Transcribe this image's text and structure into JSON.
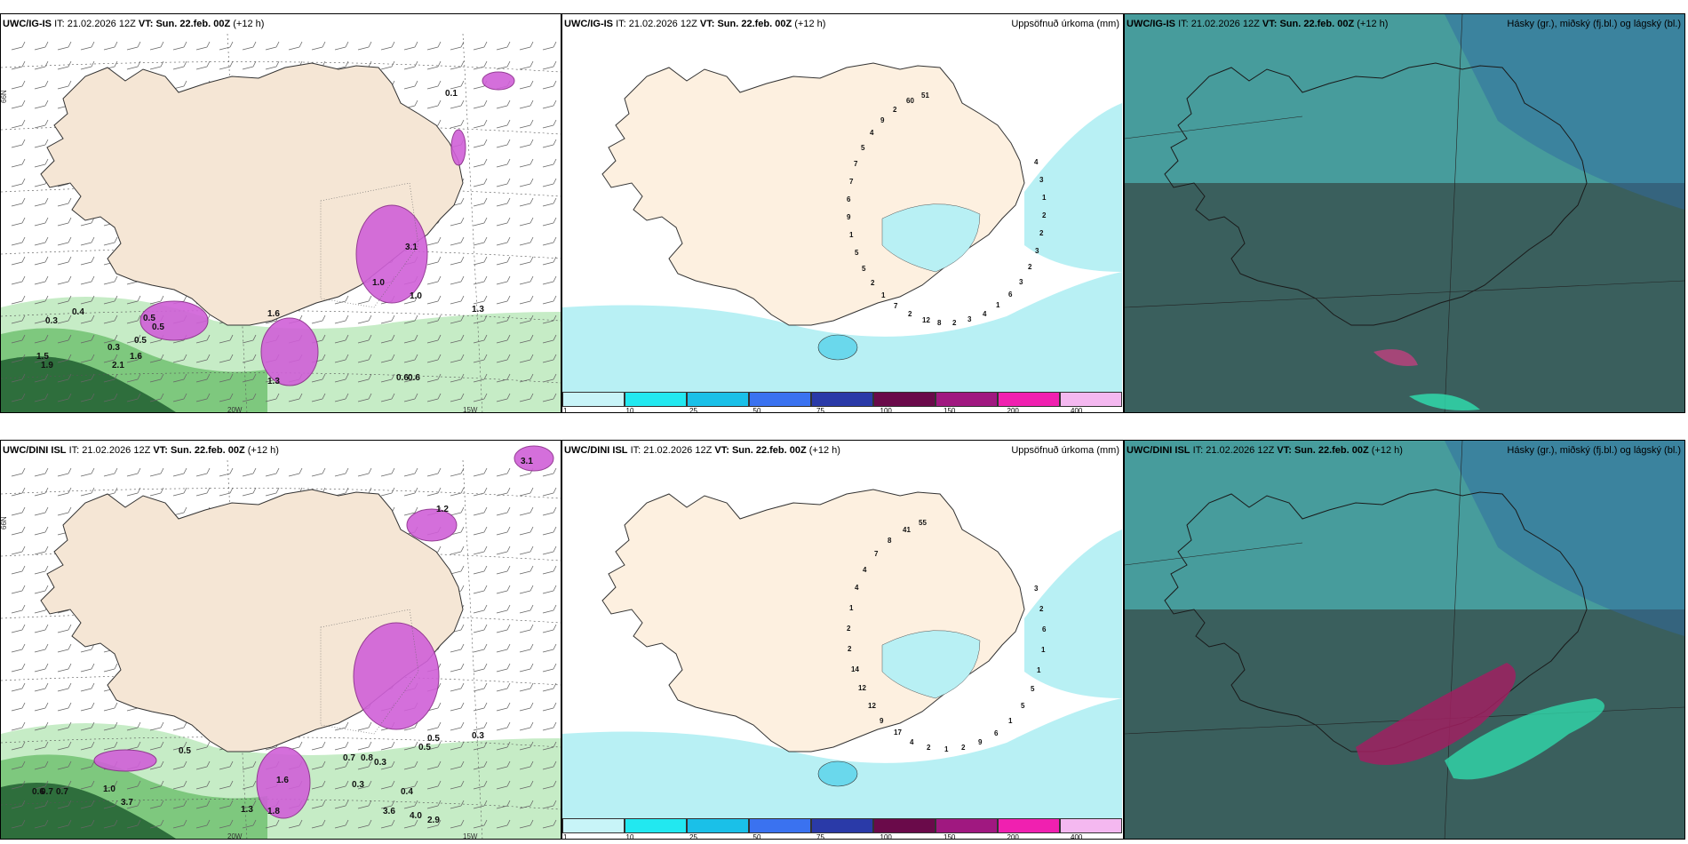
{
  "rows": [
    {
      "panels": [
        {
          "model": "UWC/IG-IS",
          "it_label": "IT:",
          "it_value": "21.02.2026 12Z",
          "vt_label": "VT: Sun. 22.feb. 00Z",
          "lead": "(+12 h)",
          "right": ""
        },
        {
          "model": "UWC/IG-IS",
          "it_label": "IT:",
          "it_value": "21.02.2026 12Z",
          "vt_label": "VT: Sun. 22.feb. 00Z",
          "lead": "(+12 h)",
          "right": "Uppsöfnuð úrkoma (mm)"
        },
        {
          "model": "UWC/IG-IS",
          "it_label": "IT:",
          "it_value": "21.02.2026 12Z",
          "vt_label": "VT: Sun. 22.feb. 00Z",
          "lead": "(+12 h)",
          "right": "Hásky (gr.), miðský (fj.bl.) og lágský (bl.)"
        }
      ],
      "wind_labels": [
        "0.3",
        "0.4",
        "0.5",
        "0.5",
        "0.5",
        "1.5",
        "1.9",
        "2.1",
        "1.6",
        "1.6",
        "3.1",
        "1.0",
        "0.6",
        "0.6",
        "1.3",
        "1.0",
        "1.3",
        "0.3",
        "0.1"
      ],
      "precip_labels": [
        "4",
        "3",
        "1",
        "2",
        "2",
        "3",
        "2",
        "3",
        "6",
        "1",
        "4",
        "3",
        "2",
        "8",
        "12",
        "2",
        "7",
        "1",
        "2",
        "5",
        "5",
        "1",
        "9",
        "6",
        "7",
        "7",
        "5",
        "4",
        "9",
        "2",
        "60",
        "51"
      ]
    },
    {
      "panels": [
        {
          "model": "UWC/DINI ISL",
          "it_label": "IT:",
          "it_value": "21.02.2026 12Z",
          "vt_label": "VT: Sun. 22.feb. 00Z",
          "lead": "(+12 h)",
          "right": ""
        },
        {
          "model": "UWC/DINI ISL",
          "it_label": "IT:",
          "it_value": "21.02.2026 12Z",
          "vt_label": "VT: Sun. 22.feb. 00Z",
          "lead": "(+12 h)",
          "right": "Uppsöfnuð úrkoma (mm)"
        },
        {
          "model": "UWC/DINI ISL",
          "it_label": "IT:",
          "it_value": "21.02.2026 12Z",
          "vt_label": "VT: Sun. 22.feb. 00Z",
          "lead": "(+12 h)",
          "right": "Hásky (gr.), miðský (fj.bl.) og lágský (bl.)"
        }
      ],
      "wind_labels": [
        "3.1",
        "1.2",
        "0.5",
        "0.3",
        "0.4",
        "0.3",
        "3.6",
        "4.0",
        "2.9",
        "0.3",
        "0.5",
        "0.5",
        "0.7",
        "0.8",
        "1.8",
        "1.3",
        "1.6",
        "3.7",
        "0.6",
        "0.7",
        "0.7",
        "1.0"
      ],
      "precip_labels": [
        "3",
        "2",
        "6",
        "1",
        "1",
        "5",
        "5",
        "1",
        "6",
        "9",
        "2",
        "1",
        "2",
        "4",
        "17",
        "9",
        "12",
        "12",
        "14",
        "2",
        "2",
        "1",
        "4",
        "4",
        "7",
        "8",
        "41",
        "55"
      ]
    }
  ],
  "axes": {
    "lat": "66N",
    "lon_left": "20W",
    "lon_right": "15W"
  },
  "colorbar": {
    "ticks": [
      "1",
      "10",
      "25",
      "50",
      "75",
      "100",
      "150",
      "200",
      "400"
    ],
    "colors": [
      "#c8f4f8",
      "#22e8f0",
      "#1ac0e8",
      "#3a72f0",
      "#2a3aa8",
      "#6a0a4a",
      "#a01880",
      "#f020b0",
      "#f4b8f0"
    ]
  },
  "colors": {
    "land": "#f5e6d5",
    "sea_precip": "#b8f0f4",
    "rain_green": "#7ec87e",
    "rain_dark": "#2e6e3c",
    "snow": "#d060d8",
    "cloud_teal": "#4a9a9a",
    "cloud_dark": "#3a5a58"
  }
}
